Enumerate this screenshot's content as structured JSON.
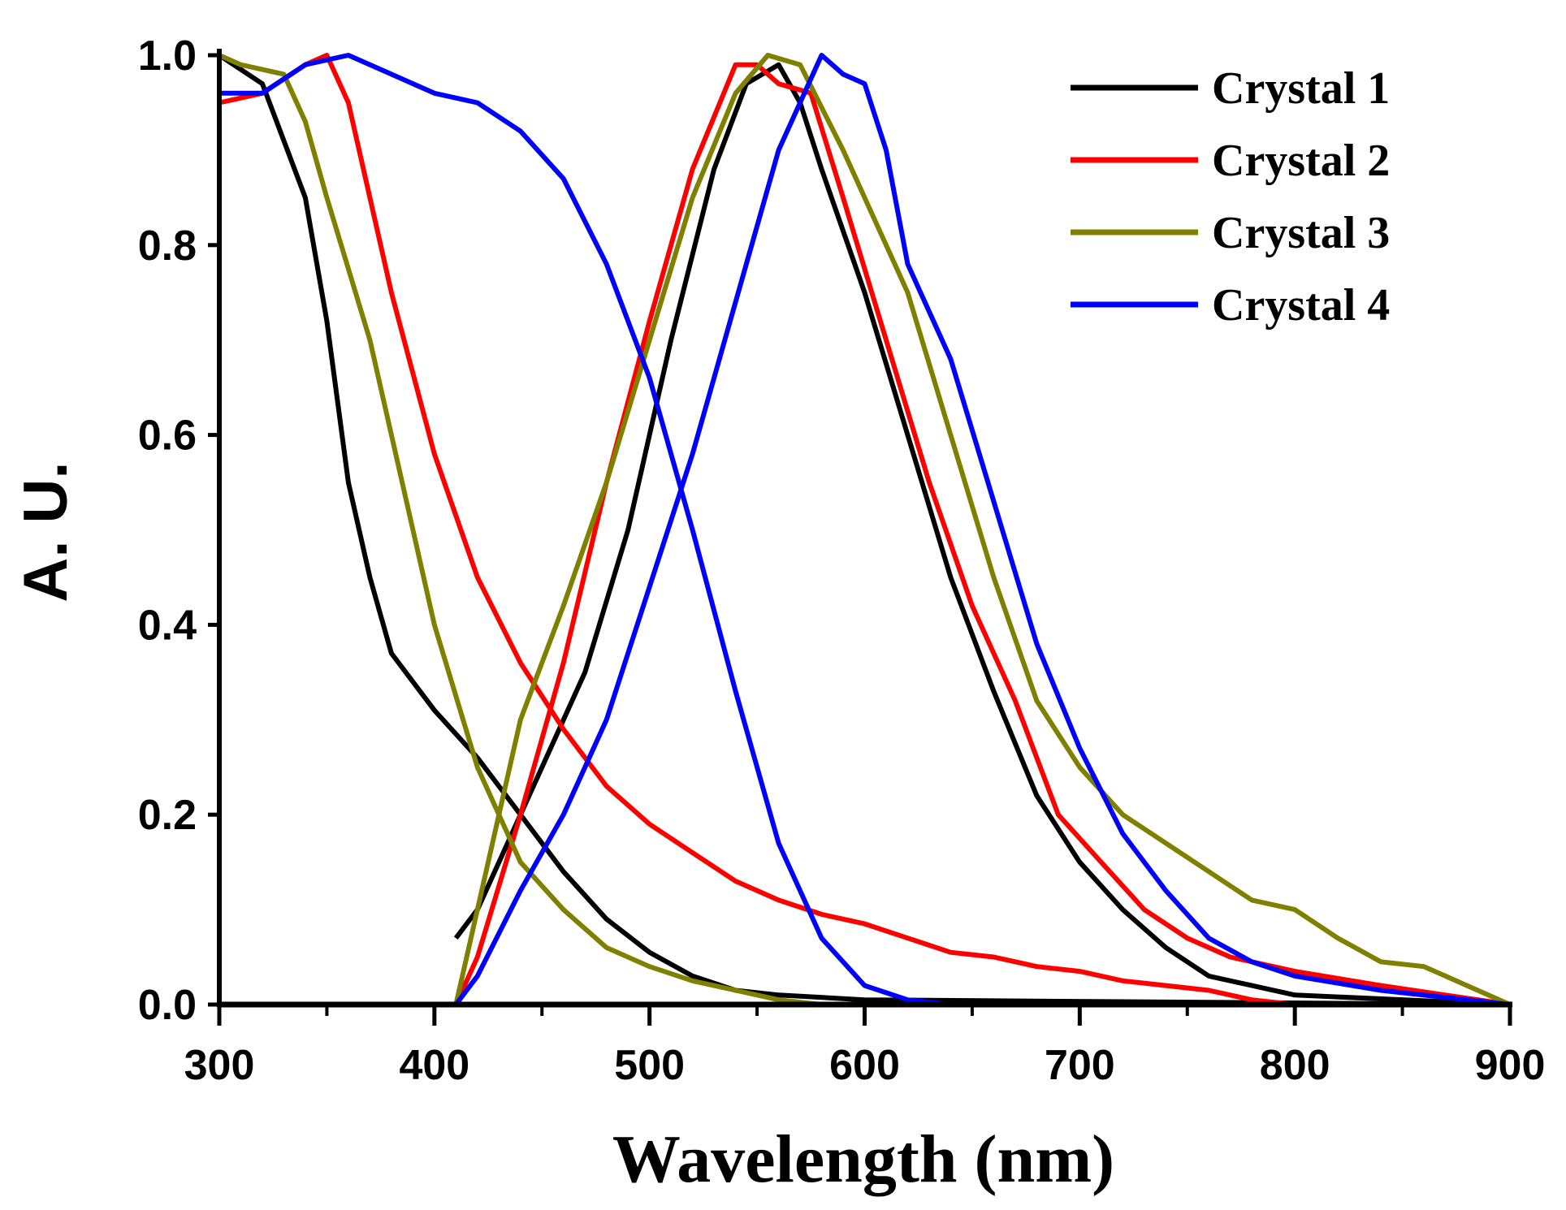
{
  "chart_data": {
    "type": "line",
    "title": "",
    "xlabel": "Wavelength (nm)",
    "ylabel": "A. U.",
    "xlim": [
      300,
      900
    ],
    "ylim": [
      0,
      1.0
    ],
    "xticks": [
      "300",
      "400",
      "500",
      "600",
      "700",
      "800",
      "900"
    ],
    "yticks": [
      "0.0",
      "0.2",
      "0.4",
      "0.6",
      "0.8",
      "1.0"
    ],
    "legend_position": "top-right",
    "grid": false,
    "series": [
      {
        "name": "Crystal 1",
        "color": "#000000",
        "segments": [
          [
            [
              300,
              1.0
            ],
            [
              320,
              0.97
            ],
            [
              340,
              0.85
            ],
            [
              350,
              0.72
            ],
            [
              360,
              0.55
            ],
            [
              370,
              0.45
            ],
            [
              380,
              0.37
            ],
            [
              400,
              0.31
            ],
            [
              420,
              0.26
            ],
            [
              440,
              0.2
            ],
            [
              460,
              0.14
            ],
            [
              480,
              0.09
            ],
            [
              500,
              0.055
            ],
            [
              520,
              0.03
            ],
            [
              540,
              0.015
            ],
            [
              560,
              0.01
            ],
            [
              600,
              0.005
            ],
            [
              900,
              0.0
            ]
          ],
          [
            [
              410,
              0.07
            ],
            [
              420,
              0.1
            ],
            [
              430,
              0.15
            ],
            [
              450,
              0.25
            ],
            [
              470,
              0.35
            ],
            [
              490,
              0.5
            ],
            [
              510,
              0.7
            ],
            [
              530,
              0.88
            ],
            [
              545,
              0.97
            ],
            [
              560,
              0.99
            ],
            [
              570,
              0.95
            ],
            [
              580,
              0.88
            ],
            [
              600,
              0.75
            ],
            [
              620,
              0.6
            ],
            [
              640,
              0.45
            ],
            [
              660,
              0.33
            ],
            [
              680,
              0.22
            ],
            [
              700,
              0.15
            ],
            [
              720,
              0.1
            ],
            [
              740,
              0.06
            ],
            [
              760,
              0.03
            ],
            [
              780,
              0.02
            ],
            [
              800,
              0.01
            ],
            [
              900,
              0.0
            ]
          ]
        ]
      },
      {
        "name": "Crystal 2",
        "color": "#ff0000",
        "segments": [
          [
            [
              300,
              0.95
            ],
            [
              320,
              0.96
            ],
            [
              340,
              0.99
            ],
            [
              350,
              1.0
            ],
            [
              360,
              0.95
            ],
            [
              370,
              0.85
            ],
            [
              380,
              0.75
            ],
            [
              400,
              0.58
            ],
            [
              420,
              0.45
            ],
            [
              440,
              0.36
            ],
            [
              460,
              0.29
            ],
            [
              480,
              0.23
            ],
            [
              500,
              0.19
            ],
            [
              520,
              0.16
            ],
            [
              540,
              0.13
            ],
            [
              560,
              0.11
            ],
            [
              580,
              0.095
            ],
            [
              600,
              0.085
            ],
            [
              620,
              0.07
            ],
            [
              640,
              0.055
            ],
            [
              660,
              0.05
            ],
            [
              680,
              0.04
            ],
            [
              700,
              0.035
            ],
            [
              720,
              0.025
            ],
            [
              740,
              0.02
            ],
            [
              760,
              0.015
            ],
            [
              780,
              0.005
            ],
            [
              800,
              0.0
            ]
          ],
          [
            [
              410,
              0.0
            ],
            [
              420,
              0.05
            ],
            [
              440,
              0.2
            ],
            [
              460,
              0.36
            ],
            [
              480,
              0.55
            ],
            [
              500,
              0.72
            ],
            [
              520,
              0.88
            ],
            [
              540,
              0.99
            ],
            [
              550,
              0.99
            ],
            [
              560,
              0.97
            ],
            [
              575,
              0.96
            ],
            [
              590,
              0.85
            ],
            [
              610,
              0.7
            ],
            [
              630,
              0.55
            ],
            [
              650,
              0.42
            ],
            [
              670,
              0.32
            ],
            [
              690,
              0.2
            ],
            [
              710,
              0.15
            ],
            [
              730,
              0.1
            ],
            [
              750,
              0.07
            ],
            [
              770,
              0.05
            ],
            [
              800,
              0.035
            ],
            [
              840,
              0.02
            ],
            [
              870,
              0.01
            ],
            [
              900,
              0.0
            ]
          ]
        ]
      },
      {
        "name": "Crystal 3",
        "color": "#808000",
        "segments": [
          [
            [
              300,
              1.0
            ],
            [
              310,
              0.99
            ],
            [
              330,
              0.98
            ],
            [
              340,
              0.93
            ],
            [
              350,
              0.85
            ],
            [
              370,
              0.7
            ],
            [
              390,
              0.5
            ],
            [
              400,
              0.4
            ],
            [
              420,
              0.25
            ],
            [
              440,
              0.15
            ],
            [
              460,
              0.1
            ],
            [
              480,
              0.06
            ],
            [
              500,
              0.04
            ],
            [
              520,
              0.025
            ],
            [
              540,
              0.015
            ],
            [
              560,
              0.005
            ],
            [
              580,
              0.0
            ]
          ],
          [
            [
              410,
              0.0
            ],
            [
              420,
              0.1
            ],
            [
              440,
              0.3
            ],
            [
              460,
              0.42
            ],
            [
              480,
              0.55
            ],
            [
              500,
              0.7
            ],
            [
              520,
              0.85
            ],
            [
              540,
              0.96
            ],
            [
              555,
              1.0
            ],
            [
              570,
              0.99
            ],
            [
              590,
              0.9
            ],
            [
              600,
              0.85
            ],
            [
              620,
              0.75
            ],
            [
              640,
              0.6
            ],
            [
              660,
              0.45
            ],
            [
              680,
              0.32
            ],
            [
              700,
              0.25
            ],
            [
              720,
              0.2
            ],
            [
              740,
              0.17
            ],
            [
              760,
              0.14
            ],
            [
              780,
              0.11
            ],
            [
              800,
              0.1
            ],
            [
              820,
              0.07
            ],
            [
              840,
              0.045
            ],
            [
              860,
              0.04
            ],
            [
              880,
              0.02
            ],
            [
              900,
              0.0
            ]
          ]
        ]
      },
      {
        "name": "Crystal 4",
        "color": "#0000ff",
        "segments": [
          [
            [
              300,
              0.96
            ],
            [
              320,
              0.96
            ],
            [
              340,
              0.99
            ],
            [
              360,
              1.0
            ],
            [
              380,
              0.98
            ],
            [
              400,
              0.96
            ],
            [
              420,
              0.95
            ],
            [
              440,
              0.92
            ],
            [
              460,
              0.87
            ],
            [
              480,
              0.78
            ],
            [
              500,
              0.66
            ],
            [
              520,
              0.5
            ],
            [
              540,
              0.33
            ],
            [
              560,
              0.17
            ],
            [
              580,
              0.07
            ],
            [
              600,
              0.02
            ],
            [
              620,
              0.005
            ],
            [
              640,
              0.0
            ]
          ],
          [
            [
              410,
              0.0
            ],
            [
              420,
              0.03
            ],
            [
              440,
              0.12
            ],
            [
              460,
              0.2
            ],
            [
              480,
              0.3
            ],
            [
              500,
              0.44
            ],
            [
              520,
              0.58
            ],
            [
              540,
              0.74
            ],
            [
              560,
              0.9
            ],
            [
              580,
              1.0
            ],
            [
              590,
              0.98
            ],
            [
              600,
              0.97
            ],
            [
              610,
              0.9
            ],
            [
              620,
              0.78
            ],
            [
              640,
              0.68
            ],
            [
              660,
              0.53
            ],
            [
              680,
              0.38
            ],
            [
              700,
              0.27
            ],
            [
              720,
              0.18
            ],
            [
              740,
              0.12
            ],
            [
              760,
              0.07
            ],
            [
              780,
              0.045
            ],
            [
              800,
              0.03
            ],
            [
              840,
              0.015
            ],
            [
              900,
              0.0
            ]
          ]
        ]
      }
    ]
  }
}
